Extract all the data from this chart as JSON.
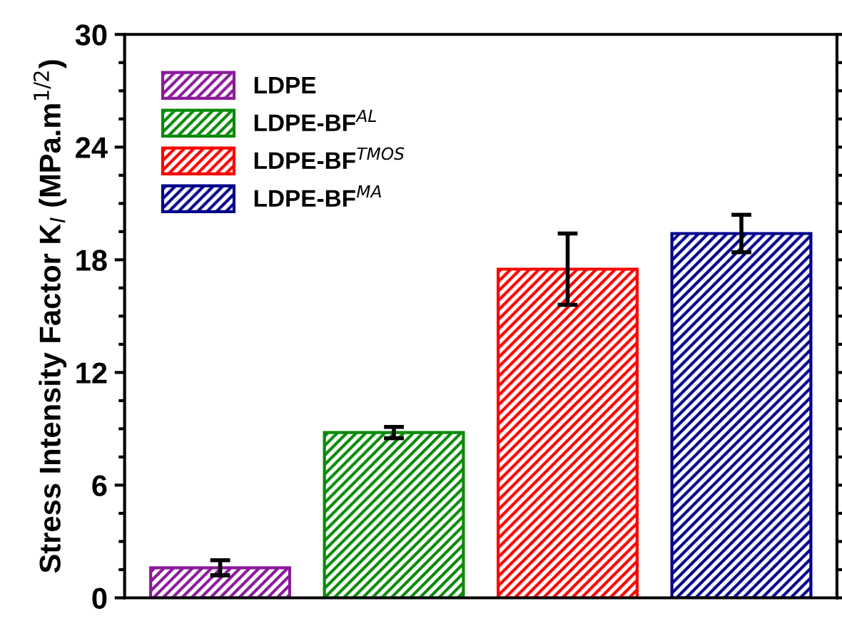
{
  "chart_data": {
    "type": "bar",
    "ylabel": "Stress Intensity Factor K$_{I}$ (MPa.m$^{1/2}$)",
    "categories": [
      null,
      null,
      null,
      null
    ],
    "series": [
      {
        "name": "LDPE",
        "color": "#8b1a9a",
        "values": [
          1.6,
          null,
          null,
          null
        ],
        "errors": [
          0.4,
          null,
          null,
          null
        ]
      },
      {
        "name": "LDPE-BF$^{AL}$",
        "color": "#0a8a0a",
        "values": [
          null,
          8.8,
          null,
          null
        ],
        "errors": [
          null,
          0.3,
          null,
          null
        ]
      },
      {
        "name": "LDPE-BF$^{TMOS}$",
        "color": "#ff0000",
        "values": [
          null,
          null,
          17.5,
          null
        ],
        "errors": [
          null,
          null,
          1.9,
          null
        ]
      },
      {
        "name": "LDPE-BF$^{MA}$",
        "color": "#00008b",
        "values": [
          null,
          null,
          null,
          19.4
        ],
        "errors": [
          null,
          null,
          null,
          1.0
        ]
      }
    ],
    "ylim": [
      0,
      30
    ],
    "yticks": [
      0,
      6,
      12,
      18,
      24,
      30
    ],
    "grid": false,
    "legend": "top left",
    "tick_labels": "y"
  }
}
